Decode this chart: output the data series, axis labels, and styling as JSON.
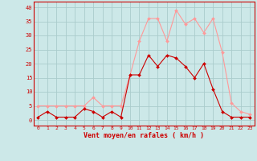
{
  "hours": [
    0,
    1,
    2,
    3,
    4,
    5,
    6,
    7,
    8,
    9,
    10,
    11,
    12,
    13,
    14,
    15,
    16,
    17,
    18,
    19,
    20,
    21,
    22,
    23
  ],
  "wind_avg": [
    1,
    3,
    1,
    1,
    1,
    4,
    3,
    1,
    3,
    1,
    16,
    16,
    23,
    19,
    23,
    22,
    19,
    15,
    20,
    11,
    3,
    1,
    1,
    1
  ],
  "wind_gust": [
    5,
    5,
    5,
    5,
    5,
    5,
    8,
    5,
    5,
    5,
    16,
    28,
    36,
    36,
    28,
    39,
    34,
    36,
    31,
    36,
    24,
    6,
    3,
    2
  ],
  "bg_color": "#cce8e8",
  "grid_color": "#aacccc",
  "avg_color": "#cc0000",
  "gust_color": "#ff9999",
  "xlabel": "Vent moyen/en rafales ( km/h )",
  "xlabel_color": "#cc0000",
  "yticks": [
    0,
    5,
    10,
    15,
    20,
    25,
    30,
    35,
    40
  ],
  "ylim": [
    -2,
    42
  ],
  "xlim": [
    -0.5,
    23.5
  ]
}
